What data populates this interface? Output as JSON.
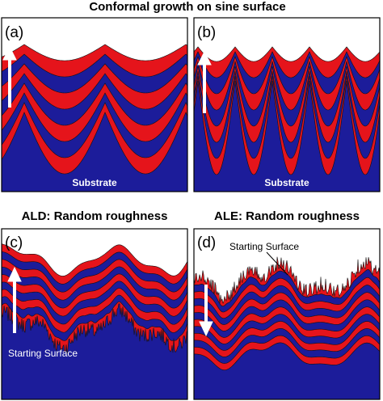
{
  "title": "Conformal growth on sine surface",
  "panels": [
    {
      "label": "(a)",
      "substrate": "Substrate"
    },
    {
      "label": "(b)",
      "substrate": "Substrate"
    },
    {
      "label": "(c)",
      "title": "ALD: Random roughness",
      "starting_surface": "Starting Surface"
    },
    {
      "label": "(d)",
      "title": "ALE: Random roughness",
      "starting_surface": "Starting Surface"
    }
  ]
}
